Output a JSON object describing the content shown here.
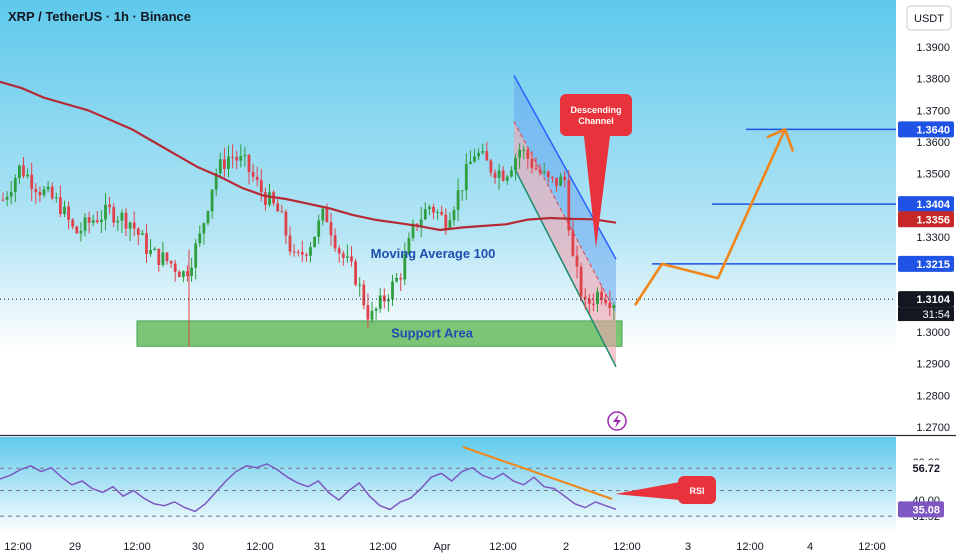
{
  "header": {
    "symbol_line": "XRP / TetherUS · 1h · Binance",
    "currency_button": "USDT"
  },
  "price_axis": {
    "ticks": [
      "1.3900",
      "1.3800",
      "1.3700",
      "1.3600",
      "1.3500",
      "1.3400",
      "1.3300",
      "1.3000",
      "1.2900",
      "1.2800",
      "1.2700"
    ],
    "tick_values": [
      1.39,
      1.38,
      1.37,
      1.36,
      1.35,
      1.34,
      1.33,
      1.3,
      1.29,
      1.28,
      1.27
    ],
    "badges": [
      {
        "label": "1.3640",
        "value": 1.364,
        "color": "#1e53e5"
      },
      {
        "label": "1.3404",
        "value": 1.3404,
        "color": "#1e53e5"
      },
      {
        "label": "1.3356",
        "value": 1.3356,
        "color": "#c62828"
      },
      {
        "label": "1.3215",
        "value": 1.3215,
        "color": "#1e53e5"
      },
      {
        "label": "1.3104",
        "value": 1.3104,
        "color": "#131722"
      }
    ],
    "countdown": "31:54"
  },
  "rsi_axis": {
    "ticks": [
      "60.00",
      "40.00",
      "31.52"
    ],
    "badges": [
      {
        "label": "56.72",
        "value": 56.72,
        "color": "#ffffff",
        "text_color": "#131722"
      },
      {
        "label": "35.08",
        "value": 35.08,
        "color": "#7e57c2",
        "text_color": "#ffffff"
      }
    ]
  },
  "time_axis": {
    "labels": [
      "12:00",
      "29",
      "12:00",
      "30",
      "12:00",
      "31",
      "12:00",
      "Apr",
      "12:00",
      "2",
      "12:00",
      "3",
      "12:00",
      "4",
      "12:00"
    ]
  },
  "annotations": {
    "descending_channel": "Descending Channel",
    "moving_average": "Moving Average 100",
    "support_area": "Support Area",
    "rsi_callout": "RSI"
  },
  "colors": {
    "background_top": "#5ec9ec",
    "background_bottom": "#ffffff",
    "up_candle": "#2e9e3f",
    "down_candle": "#e0424b",
    "ma_line": "#b52a35",
    "channel_fill": "#6aa8f0",
    "support_fill": "#7cc576",
    "projection": "#f0861a",
    "rsi_line": "#7e57c2",
    "level_line": "#1e53e5"
  },
  "chart_data": {
    "type": "candlestick",
    "title": "XRP / TetherUS · 1h · Binance",
    "ylim": [
      1.27,
      1.395
    ],
    "last_price": 1.3104,
    "support_area": [
      1.2955,
      1.3035
    ],
    "levels": [
      1.364,
      1.3404,
      1.3215
    ],
    "moving_average_100": {
      "name": "Moving Average 100",
      "values": [
        1.379,
        1.377,
        1.374,
        1.372,
        1.37,
        1.367,
        1.364,
        1.36,
        1.356,
        1.352,
        1.349,
        1.3455,
        1.343,
        1.342,
        1.3405,
        1.339,
        1.337,
        1.3355,
        1.3345,
        1.3335,
        1.3322,
        1.333,
        1.3335,
        1.334,
        1.3355,
        1.336,
        1.3357,
        1.3356,
        1.3345
      ]
    },
    "descending_channel": {
      "upper": [
        [
          1.381,
          0
        ],
        [
          1.323,
          1
        ]
      ],
      "lower": [
        [
          1.352,
          0
        ],
        [
          1.289,
          1
        ]
      ]
    },
    "projection_path": [
      1.3085,
      1.3215,
      1.317,
      1.364,
      1.357
    ],
    "rsi": {
      "name": "RSI",
      "current": 35.08,
      "reference": 56.72,
      "values": [
        51,
        53,
        56,
        58,
        55,
        57,
        52,
        48,
        50,
        46,
        44,
        47,
        42,
        45,
        41,
        38,
        37,
        39,
        36,
        34,
        38,
        44,
        50,
        55,
        58,
        57,
        59,
        56,
        52,
        49,
        47,
        50,
        44,
        40,
        45,
        49,
        42,
        37,
        35,
        39,
        41,
        46,
        52,
        54,
        50,
        55,
        57,
        53,
        51,
        54,
        50,
        48,
        52,
        47,
        46,
        42,
        38,
        36,
        39,
        37,
        35.08
      ]
    }
  }
}
